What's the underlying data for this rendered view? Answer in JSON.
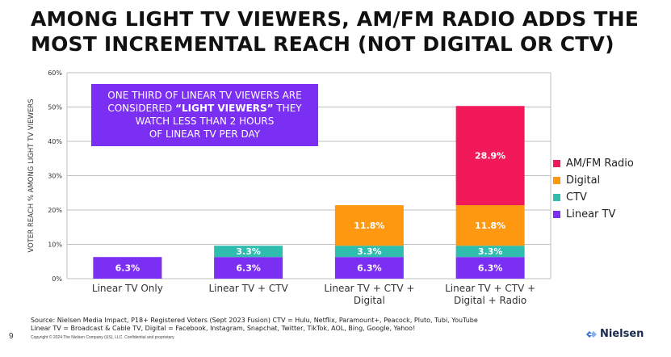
{
  "title": {
    "line1": "AMONG LIGHT TV VIEWERS, AM/FM RADIO ADDS THE",
    "line2": "MOST INCREMENTAL REACH (NOT DIGITAL OR CTV)"
  },
  "callout": {
    "line1": "ONE THIRD OF LINEAR TV VIEWERS ARE",
    "line2_pre": "CONSIDERED ",
    "line2_bold": "“LIGHT VIEWERS”",
    "line2_post": " THEY",
    "line3": "WATCH LESS THAN 2 HOURS",
    "line4": "OF LINEAR TV PER DAY"
  },
  "chart_data": {
    "type": "bar",
    "stacked": true,
    "ylabel": "VOTER REACH % AMONG LIGHT TV VIEWERS",
    "ylim": [
      0,
      60
    ],
    "yticks": [
      "0%",
      "10%",
      "20%",
      "30%",
      "40%",
      "50%",
      "60%"
    ],
    "grid": true,
    "legend_position": "right",
    "categories": [
      [
        "Linear TV Only"
      ],
      [
        "Linear TV + CTV"
      ],
      [
        "Linear TV + CTV +",
        "Digital"
      ],
      [
        "Linear TV + CTV +",
        "Digital + Radio"
      ]
    ],
    "series": [
      {
        "name": "Linear TV",
        "color": "#7b2ff2",
        "values": [
          6.3,
          6.3,
          6.3,
          6.3
        ],
        "labels": [
          "6.3%",
          "6.3%",
          "6.3%",
          "6.3%"
        ]
      },
      {
        "name": "CTV",
        "color": "#2fbdb0",
        "values": [
          0,
          3.3,
          3.3,
          3.3
        ],
        "labels": [
          "",
          "3.3%",
          "3.3%",
          "3.3%"
        ]
      },
      {
        "name": "Digital",
        "color": "#ff9811",
        "values": [
          0,
          0,
          11.8,
          11.8
        ],
        "labels": [
          "",
          "",
          "11.8%",
          "11.8%"
        ]
      },
      {
        "name": "AM/FM Radio",
        "color": "#f2195b",
        "values": [
          0,
          0,
          0,
          28.9
        ],
        "labels": [
          "",
          "",
          "",
          "28.9%"
        ]
      }
    ],
    "legend_order": [
      "AM/FM Radio",
      "Digital",
      "CTV",
      "Linear TV"
    ]
  },
  "source": {
    "line1": "Source: Nielsen Media Impact, P18+ Registered Voters (Sept 2023 Fusion) CTV = Hulu, Netflix, Paramount+, Peacock, Pluto, Tubi, YouTube",
    "line2": "Linear TV = Broadcast & Cable TV, Digital = Facebook, Instagram, Snapchat, Twitter, TikTok, AOL, Bing, Google, Yahoo!"
  },
  "copyright": "Copyright © 2024 The Nielsen Company (US), LLC. Confidential and proprietary.",
  "page_number": "9",
  "logo": {
    "text": "Nielsen"
  }
}
